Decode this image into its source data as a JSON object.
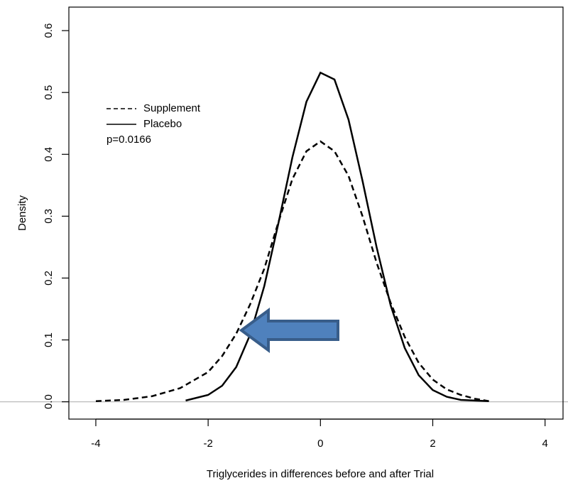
{
  "chart_data": {
    "type": "line",
    "x_label": "Triglycerides in differences before and after Trial",
    "y_label": "Density",
    "annotation": "p=0.0166",
    "xlim": [
      -4.48,
      4.32
    ],
    "xticks": [
      -4,
      -2,
      0,
      2,
      4
    ],
    "ylim": [
      -0.028,
      0.638
    ],
    "yticks": [
      0.0,
      0.1,
      0.2,
      0.3,
      0.4,
      0.5,
      0.6
    ],
    "ytick_labels": [
      "0.0",
      "0.1",
      "0.2",
      "0.3",
      "0.4",
      "0.5",
      "0.6"
    ],
    "legend": "top-left",
    "series": [
      {
        "name": "Supplement",
        "color": "#000000",
        "dash": true,
        "x": [
          -4,
          -3.5,
          -3,
          -2.5,
          -2,
          -1.75,
          -1.5,
          -1.25,
          -1,
          -0.75,
          -0.5,
          -0.25,
          0,
          0.25,
          0.5,
          0.75,
          1,
          1.25,
          1.5,
          1.75,
          2,
          2.25,
          2.5,
          2.75,
          3
        ],
        "values": [
          0.001,
          0.003,
          0.009,
          0.022,
          0.048,
          0.074,
          0.11,
          0.158,
          0.215,
          0.29,
          0.36,
          0.405,
          0.421,
          0.405,
          0.365,
          0.3,
          0.225,
          0.16,
          0.105,
          0.063,
          0.036,
          0.02,
          0.011,
          0.005,
          0.001
        ]
      },
      {
        "name": "Placebo",
        "color": "#000000",
        "dash": false,
        "x": [
          -2.4,
          -2,
          -1.75,
          -1.5,
          -1.25,
          -1,
          -0.75,
          -0.5,
          -0.25,
          0,
          0.25,
          0.5,
          0.75,
          1,
          1.25,
          1.5,
          1.75,
          2,
          2.25,
          2.5,
          3
        ],
        "values": [
          0.002,
          0.011,
          0.026,
          0.056,
          0.109,
          0.187,
          0.288,
          0.395,
          0.485,
          0.532,
          0.521,
          0.456,
          0.357,
          0.25,
          0.156,
          0.087,
          0.043,
          0.019,
          0.008,
          0.003,
          0.001
        ]
      }
    ]
  }
}
